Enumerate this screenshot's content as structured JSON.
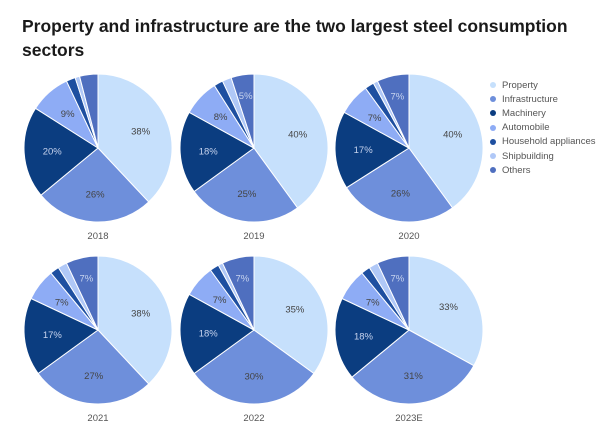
{
  "chart_data": {
    "type": "pie",
    "title": "Property and infrastructure are the two largest steel consumption sectors",
    "legend_position": "right",
    "categories": [
      "Property",
      "Infrastructure",
      "Machinery",
      "Automobile",
      "Household appliances",
      "Shipbuilding",
      "Others"
    ],
    "colors": [
      "#c6e0fc",
      "#6e8fdb",
      "#0b3d80",
      "#8eacf5",
      "#1e4fa0",
      "#b0c8f7",
      "#4f6fbf"
    ],
    "pies": [
      {
        "label": "2018",
        "values": [
          38,
          26,
          20,
          9,
          2,
          1,
          4
        ],
        "labels": [
          "38%",
          "26%",
          "20%",
          "9%",
          "",
          "",
          ""
        ]
      },
      {
        "label": "2019",
        "values": [
          40,
          25,
          18,
          8,
          2,
          2,
          5
        ],
        "labels": [
          "40%",
          "25%",
          "18%",
          "8%",
          "",
          "",
          "5%"
        ]
      },
      {
        "label": "2020",
        "values": [
          40,
          26,
          17,
          7,
          2,
          1,
          7
        ],
        "labels": [
          "40%",
          "26%",
          "17%",
          "7%",
          "",
          "",
          "7%"
        ]
      },
      {
        "label": "2021",
        "values": [
          38,
          27,
          17,
          7,
          2,
          2,
          7
        ],
        "labels": [
          "38%",
          "27%",
          "17%",
          "7%",
          "",
          "",
          "7%"
        ]
      },
      {
        "label": "2022",
        "values": [
          35,
          30,
          18,
          7,
          2,
          1,
          7
        ],
        "labels": [
          "35%",
          "30%",
          "18%",
          "7%",
          "",
          "",
          "7%"
        ]
      },
      {
        "label": "2023E",
        "values": [
          33,
          31,
          18,
          7,
          2,
          2,
          7
        ],
        "labels": [
          "33%",
          "31%",
          "18%",
          "7%",
          "",
          "",
          "7%"
        ]
      }
    ]
  }
}
